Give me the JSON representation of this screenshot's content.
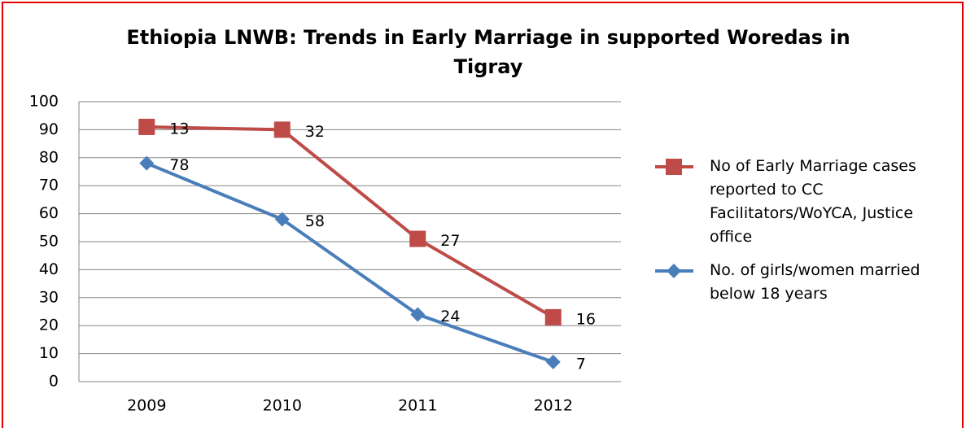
{
  "chart_data": {
    "type": "stacked_line",
    "title": "Ethiopia LNWB: Trends in Early Marriage in supported Woredas in Tigray",
    "categories": [
      "2009",
      "2010",
      "2011",
      "2012"
    ],
    "series": [
      {
        "name": "No. of girls/women married  below 18 years",
        "color": "#4a7ebb",
        "marker": "diamond",
        "values": [
          78,
          58,
          24,
          7
        ]
      },
      {
        "name": "No of Early Marriage cases reported to CC Facilitators/WoYCA, Justice office",
        "color": "#be4b48",
        "marker": "square",
        "values": [
          13,
          32,
          27,
          16
        ]
      }
    ],
    "ylim": [
      0,
      100
    ],
    "yticks": [
      0,
      10,
      20,
      30,
      40,
      50,
      60,
      70,
      80,
      90,
      100
    ],
    "grid": true,
    "legend": "right",
    "stacked": true
  }
}
